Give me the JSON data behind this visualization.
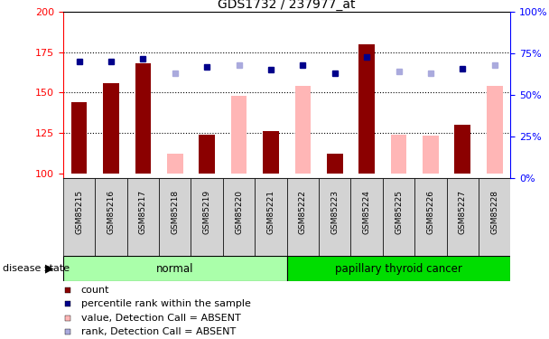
{
  "title": "GDS1732 / 237977_at",
  "samples": [
    "GSM85215",
    "GSM85216",
    "GSM85217",
    "GSM85218",
    "GSM85219",
    "GSM85220",
    "GSM85221",
    "GSM85222",
    "GSM85223",
    "GSM85224",
    "GSM85225",
    "GSM85226",
    "GSM85227",
    "GSM85228"
  ],
  "ylim_left": [
    97,
    200
  ],
  "ylim_right": [
    0,
    100
  ],
  "yticks_left": [
    100,
    125,
    150,
    175,
    200
  ],
  "yticks_right": [
    0,
    25,
    50,
    75,
    100
  ],
  "bar_values": {
    "GSM85215": 144,
    "GSM85216": 156,
    "GSM85217": 168,
    "GSM85218": null,
    "GSM85219": 124,
    "GSM85220": null,
    "GSM85221": 126,
    "GSM85222": null,
    "GSM85223": 112,
    "GSM85224": 180,
    "GSM85225": null,
    "GSM85226": null,
    "GSM85227": 130,
    "GSM85228": null
  },
  "absent_bar_values": {
    "GSM85215": null,
    "GSM85216": null,
    "GSM85217": null,
    "GSM85218": 112,
    "GSM85219": null,
    "GSM85220": 148,
    "GSM85221": null,
    "GSM85222": 154,
    "GSM85223": null,
    "GSM85224": null,
    "GSM85225": 124,
    "GSM85226": 123,
    "GSM85227": null,
    "GSM85228": 154
  },
  "rank_values": {
    "GSM85215": 70,
    "GSM85216": 70,
    "GSM85217": 72,
    "GSM85218": null,
    "GSM85219": 67,
    "GSM85220": null,
    "GSM85221": 65,
    "GSM85222": 68,
    "GSM85223": 63,
    "GSM85224": 73,
    "GSM85225": null,
    "GSM85226": null,
    "GSM85227": 66,
    "GSM85228": null
  },
  "absent_rank_values": {
    "GSM85215": null,
    "GSM85216": null,
    "GSM85217": null,
    "GSM85218": 63,
    "GSM85219": null,
    "GSM85220": 68,
    "GSM85221": null,
    "GSM85222": null,
    "GSM85223": null,
    "GSM85224": null,
    "GSM85225": 64,
    "GSM85226": 63,
    "GSM85227": null,
    "GSM85228": 68
  },
  "bar_color": "#8B0000",
  "absent_bar_color": "#FFB6B6",
  "rank_color": "#00008B",
  "absent_rank_color": "#AAAADD",
  "bar_width": 0.5,
  "ybase": 100,
  "normal_color": "#AAFFAA",
  "cancer_color": "#00DD00",
  "xtick_bg": "#CCCCCC",
  "legend_items": [
    {
      "color": "#8B0000",
      "label": "count"
    },
    {
      "color": "#00008B",
      "label": "percentile rank within the sample"
    },
    {
      "color": "#FFB6B6",
      "label": "value, Detection Call = ABSENT"
    },
    {
      "color": "#AAAADD",
      "label": "rank, Detection Call = ABSENT"
    }
  ]
}
